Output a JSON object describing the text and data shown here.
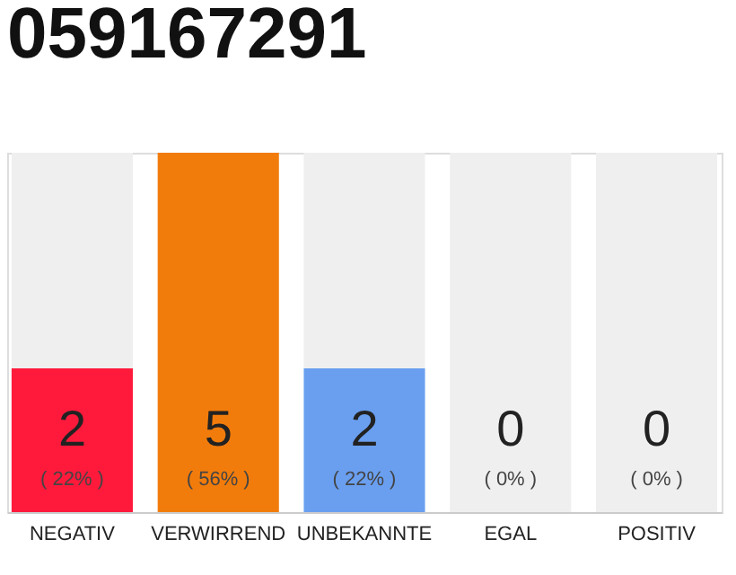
{
  "chart_data": {
    "type": "bar",
    "title": "059167291",
    "stacked": true,
    "categories": [
      "NEGATIV",
      "VERWIRREND",
      "UNBEKANNTE",
      "EGAL",
      "POSITIV"
    ],
    "series": [
      {
        "colors": [
          "#ff1a3c",
          "#f27c0b",
          "#6a9ff0",
          "#ff1a3c",
          "#6ad07a"
        ],
        "values": [
          2,
          5,
          2,
          0,
          0
        ],
        "value_labels": [
          "2",
          "5",
          "2",
          null,
          null
        ]
      },
      {
        "color": "#efefef",
        "values": [
          3,
          0,
          3,
          5,
          5
        ]
      }
    ],
    "annotations": [
      "( 22% )",
      "( 56% )",
      "( 22% )",
      "( 0% )",
      "( 0% )",
      {
        "text": "0",
        "x": "EGAL",
        "y": 0
      },
      {
        "text": "0",
        "x": "POSITIV",
        "y": 0
      }
    ]
  }
}
